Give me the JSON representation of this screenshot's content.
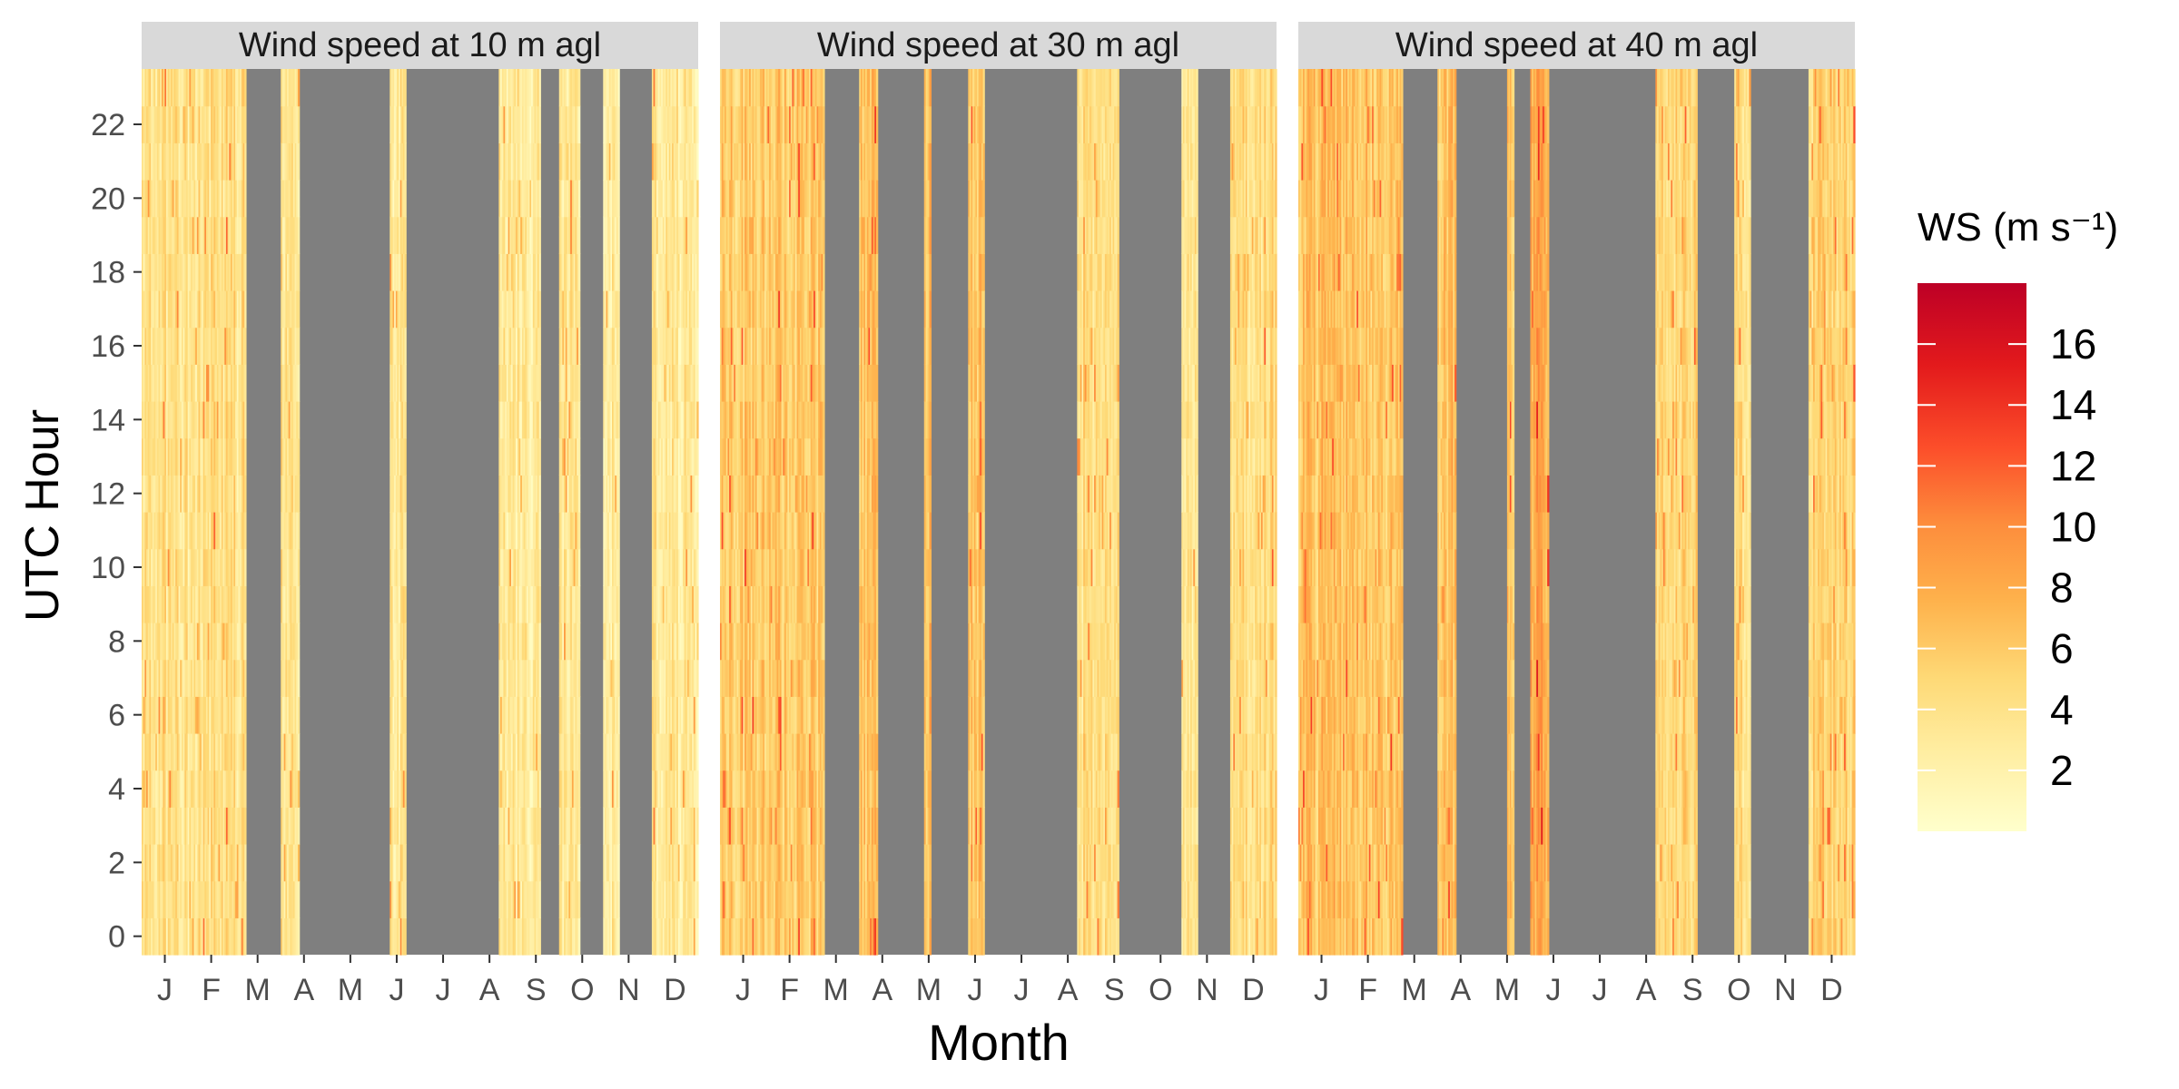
{
  "chart_data": {
    "type": "heatmap",
    "xlabel": "Month",
    "ylabel": "UTC Hour",
    "x_ticks": [
      "J",
      "F",
      "M",
      "A",
      "M",
      "J",
      "J",
      "A",
      "S",
      "O",
      "N",
      "D"
    ],
    "y_ticks": [
      0,
      2,
      4,
      6,
      8,
      10,
      12,
      14,
      16,
      18,
      20,
      22
    ],
    "ylim": [
      0,
      23
    ],
    "missing_color": "#7f7f7f",
    "legend": {
      "title": "WS (m s⁻¹)",
      "position": "right",
      "ticks": [
        2,
        4,
        6,
        8,
        10,
        12,
        14,
        16
      ],
      "range": [
        0,
        18
      ],
      "colors": [
        "#ffffcc",
        "#ffeda0",
        "#fed976",
        "#feb24c",
        "#fd8d3c",
        "#fc4e2a",
        "#e31a1c",
        "#bd0026"
      ]
    },
    "panels": [
      {
        "title": "Wind speed at 10 m agl",
        "height_m": 10,
        "mean_ws": 3.5,
        "data_periods": [
          {
            "start_month": 0.0,
            "end_month": 2.25,
            "mean_ws": 4.0
          },
          {
            "start_month": 3.0,
            "end_month": 3.4,
            "mean_ws": 3.5
          },
          {
            "start_month": 5.35,
            "end_month": 5.7,
            "mean_ws": 3.5
          },
          {
            "start_month": 7.7,
            "end_month": 8.6,
            "mean_ws": 3.0
          },
          {
            "start_month": 9.0,
            "end_month": 9.45,
            "mean_ws": 3.0
          },
          {
            "start_month": 9.95,
            "end_month": 10.3,
            "mean_ws": 3.0
          },
          {
            "start_month": 11.0,
            "end_month": 12.0,
            "mean_ws": 3.0
          }
        ]
      },
      {
        "title": "Wind speed at 30 m agl",
        "height_m": 30,
        "mean_ws": 5.5,
        "data_periods": [
          {
            "start_month": 0.0,
            "end_month": 2.25,
            "mean_ws": 6.0
          },
          {
            "start_month": 3.0,
            "end_month": 3.4,
            "mean_ws": 6.0
          },
          {
            "start_month": 4.4,
            "end_month": 4.55,
            "mean_ws": 7.0
          },
          {
            "start_month": 5.35,
            "end_month": 5.7,
            "mean_ws": 6.5
          },
          {
            "start_month": 7.7,
            "end_month": 8.6,
            "mean_ws": 4.5
          },
          {
            "start_month": 9.95,
            "end_month": 10.3,
            "mean_ws": 4.0
          },
          {
            "start_month": 11.0,
            "end_month": 12.0,
            "mean_ws": 4.5
          }
        ]
      },
      {
        "title": "Wind speed at 40 m agl",
        "height_m": 40,
        "mean_ws": 6.0,
        "data_periods": [
          {
            "start_month": 0.0,
            "end_month": 2.25,
            "mean_ws": 6.5
          },
          {
            "start_month": 3.0,
            "end_month": 3.4,
            "mean_ws": 6.5
          },
          {
            "start_month": 4.5,
            "end_month": 4.65,
            "mean_ws": 7.0
          },
          {
            "start_month": 5.0,
            "end_month": 5.4,
            "mean_ws": 8.0
          },
          {
            "start_month": 7.7,
            "end_month": 8.6,
            "mean_ws": 5.0
          },
          {
            "start_month": 9.4,
            "end_month": 9.75,
            "mean_ws": 4.5
          },
          {
            "start_month": 11.0,
            "end_month": 12.0,
            "mean_ws": 5.0
          }
        ]
      }
    ]
  }
}
